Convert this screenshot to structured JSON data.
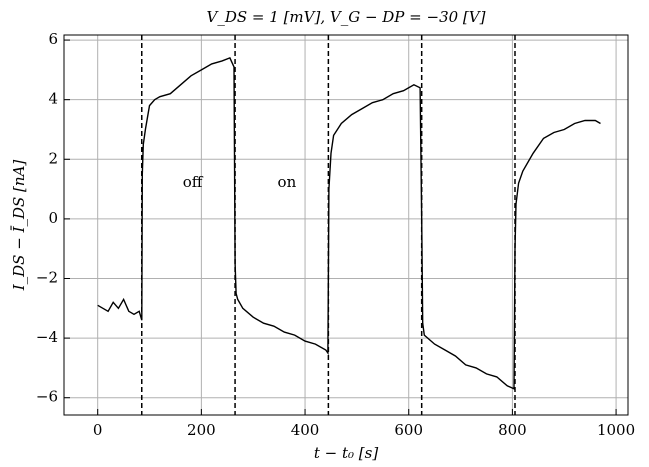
{
  "chart_data": {
    "type": "line",
    "title": "V_DS = 1 [mV], V_G − DP = −30 [V]",
    "xlabel": "t − t₀ [s]",
    "ylabel": "I_DS − Ī_DS [nA]",
    "annotations": [
      {
        "text": "off",
        "x": 183,
        "y": 1.2
      },
      {
        "text": "on",
        "x": 365,
        "y": 1.2
      }
    ],
    "vlines": [
      85,
      265,
      445,
      625,
      805
    ],
    "grid": true,
    "xlim": [
      -65,
      1023
    ],
    "ylim": [
      -6.58,
      6.17
    ],
    "xticks": [
      0,
      200,
      400,
      600,
      800,
      1000
    ],
    "yticks": [
      {
        "value": -6,
        "label": "−6"
      },
      {
        "value": -4,
        "label": "−4"
      },
      {
        "value": -2,
        "label": "−2"
      },
      0,
      2,
      4,
      6
    ],
    "series": [
      {
        "name": "I_DS",
        "color": "#000000",
        "x": [
          0,
          10,
          20,
          30,
          40,
          50,
          60,
          70,
          80,
          85,
          86,
          88,
          92,
          100,
          110,
          120,
          140,
          160,
          180,
          200,
          220,
          240,
          255,
          263,
          265,
          267,
          270,
          280,
          300,
          320,
          340,
          360,
          380,
          400,
          420,
          440,
          444,
          446,
          450,
          455,
          470,
          490,
          510,
          530,
          550,
          570,
          590,
          610,
          622,
          625,
          627,
          630,
          650,
          670,
          690,
          710,
          730,
          750,
          770,
          790,
          803,
          805,
          807,
          812,
          820,
          840,
          860,
          880,
          900,
          920,
          940,
          960,
          970
        ],
        "values": [
          -2.9,
          -3.0,
          -3.1,
          -2.8,
          -3.0,
          -2.7,
          -3.1,
          -3.2,
          -3.1,
          -3.4,
          1.5,
          2.5,
          3.0,
          3.8,
          4.0,
          4.1,
          4.2,
          4.5,
          4.8,
          5.0,
          5.2,
          5.3,
          5.4,
          5.1,
          -1.5,
          -2.5,
          -2.7,
          -3.0,
          -3.3,
          -3.5,
          -3.6,
          -3.8,
          -3.9,
          -4.1,
          -4.2,
          -4.4,
          -4.5,
          1.0,
          2.2,
          2.8,
          3.2,
          3.5,
          3.7,
          3.9,
          4.0,
          4.2,
          4.3,
          4.5,
          4.4,
          0,
          -3.5,
          -3.9,
          -4.2,
          -4.4,
          -4.6,
          -4.9,
          -5.0,
          -5.2,
          -5.3,
          -5.6,
          -5.7,
          -1.0,
          0.5,
          1.2,
          1.6,
          2.2,
          2.7,
          2.9,
          3.0,
          3.2,
          3.3,
          3.3,
          3.2
        ]
      }
    ]
  }
}
